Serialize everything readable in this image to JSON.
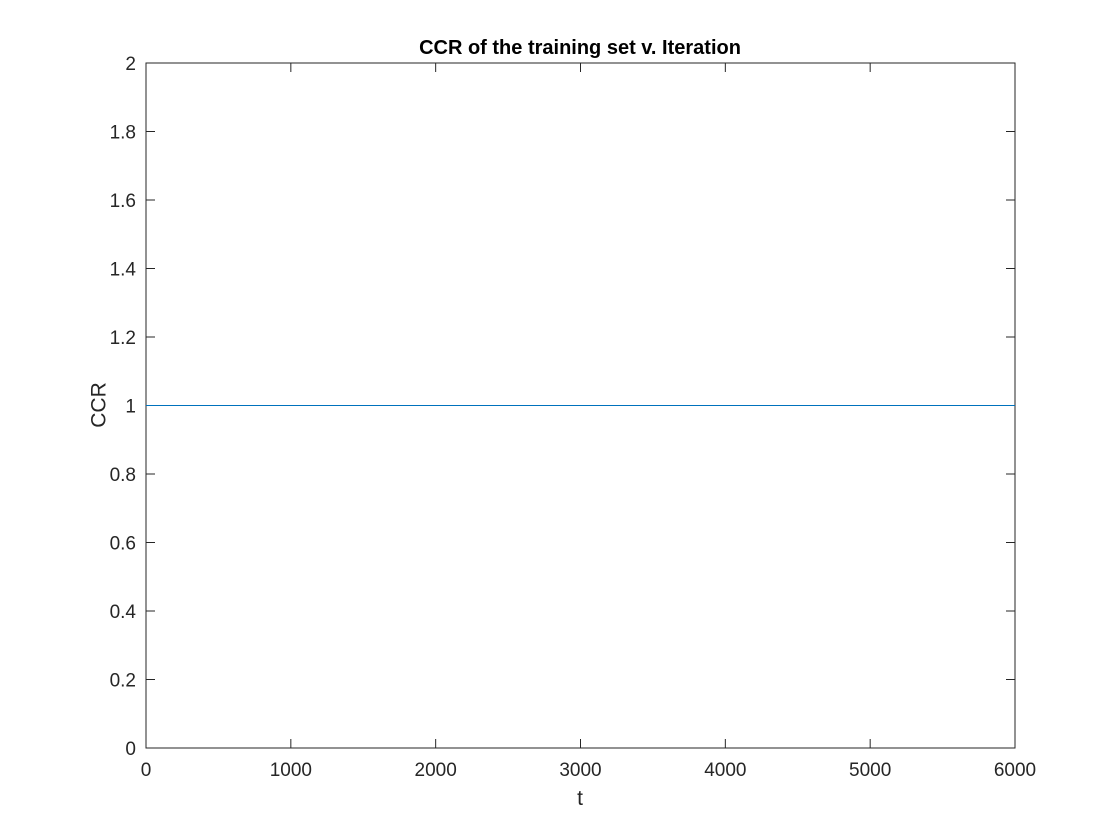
{
  "chart_data": {
    "type": "line",
    "title": "CCR of the training set v. Iteration",
    "xlabel": "t",
    "ylabel": "CCR",
    "xlim": [
      0,
      6000
    ],
    "ylim": [
      0,
      2
    ],
    "x_ticks": [
      0,
      1000,
      2000,
      3000,
      4000,
      5000,
      6000
    ],
    "y_ticks": [
      0,
      0.2,
      0.4,
      0.6,
      0.8,
      1,
      1.2,
      1.4,
      1.6,
      1.8,
      2
    ],
    "grid": false,
    "series": [
      {
        "color": "#0072BD",
        "x": [
          0,
          6000
        ],
        "y": [
          1,
          1
        ]
      }
    ]
  }
}
